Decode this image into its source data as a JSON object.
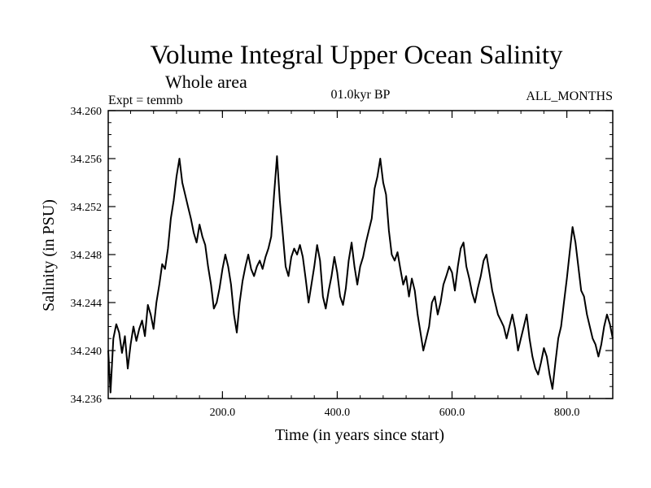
{
  "chart_data": {
    "type": "line",
    "title": "Volume Integral Upper Ocean Salinity",
    "subtitle": "Whole area",
    "experiment_label": "Expt = temmb",
    "period_label": "01.0kyr BP",
    "months_label": "ALL_MONTHS",
    "xlabel": "Time (in years since start)",
    "ylabel": "Salinity (in PSU)",
    "xlim": [
      1,
      880
    ],
    "ylim": [
      34.236,
      34.26
    ],
    "grid": false,
    "x_ticks": [
      200,
      400,
      600,
      800
    ],
    "x_tick_labels": [
      "200.0",
      "400.0",
      "600.0",
      "800.0"
    ],
    "y_ticks": [
      34.236,
      34.24,
      34.244,
      34.248,
      34.252,
      34.256,
      34.26
    ],
    "y_tick_labels": [
      "34.236",
      "34.240",
      "34.244",
      "34.248",
      "34.252",
      "34.256",
      "34.260"
    ],
    "series": [
      {
        "name": "Salinity",
        "color": "#000000",
        "x": [
          1,
          5,
          10,
          15,
          20,
          25,
          30,
          35,
          40,
          45,
          50,
          55,
          60,
          65,
          70,
          75,
          80,
          85,
          90,
          95,
          100,
          105,
          110,
          115,
          120,
          125,
          130,
          135,
          140,
          145,
          150,
          155,
          160,
          165,
          170,
          175,
          180,
          185,
          190,
          195,
          200,
          205,
          210,
          215,
          220,
          225,
          230,
          235,
          240,
          245,
          250,
          255,
          260,
          265,
          270,
          275,
          280,
          285,
          290,
          295,
          300,
          305,
          310,
          315,
          320,
          325,
          330,
          335,
          340,
          345,
          350,
          355,
          360,
          365,
          370,
          375,
          380,
          385,
          390,
          395,
          400,
          405,
          410,
          415,
          420,
          425,
          430,
          435,
          440,
          445,
          450,
          455,
          460,
          465,
          470,
          475,
          480,
          485,
          490,
          495,
          500,
          505,
          510,
          515,
          520,
          525,
          530,
          535,
          540,
          545,
          550,
          555,
          560,
          565,
          570,
          575,
          580,
          585,
          590,
          595,
          600,
          605,
          610,
          615,
          620,
          625,
          630,
          635,
          640,
          645,
          650,
          655,
          660,
          665,
          670,
          675,
          680,
          685,
          690,
          695,
          700,
          705,
          710,
          715,
          720,
          725,
          730,
          735,
          740,
          745,
          750,
          755,
          760,
          765,
          770,
          775,
          780,
          785,
          790,
          795,
          800,
          805,
          810,
          815,
          820,
          825,
          830,
          835,
          840,
          845,
          850,
          855,
          860,
          865,
          870,
          875,
          880
        ],
        "values": [
          34.24,
          34.2365,
          34.241,
          34.2422,
          34.2415,
          34.2398,
          34.2412,
          34.2385,
          34.2405,
          34.242,
          34.2408,
          34.2418,
          34.2425,
          34.2412,
          34.2438,
          34.243,
          34.2418,
          34.244,
          34.2455,
          34.2472,
          34.2468,
          34.2485,
          34.251,
          34.2525,
          34.2545,
          34.256,
          34.254,
          34.253,
          34.252,
          34.251,
          34.2498,
          34.249,
          34.2505,
          34.2495,
          34.2488,
          34.247,
          34.2455,
          34.2435,
          34.244,
          34.2452,
          34.2468,
          34.248,
          34.247,
          34.2455,
          34.243,
          34.2415,
          34.244,
          34.2458,
          34.247,
          34.248,
          34.2468,
          34.2462,
          34.247,
          34.2475,
          34.2468,
          34.2478,
          34.2485,
          34.2495,
          34.253,
          34.2562,
          34.2525,
          34.2498,
          34.247,
          34.2462,
          34.2478,
          34.2485,
          34.248,
          34.2488,
          34.2478,
          34.246,
          34.244,
          34.2455,
          34.247,
          34.2488,
          34.2475,
          34.2445,
          34.2435,
          34.245,
          34.2462,
          34.2478,
          34.2465,
          34.2445,
          34.2438,
          34.2452,
          34.2475,
          34.249,
          34.247,
          34.2455,
          34.247,
          34.2478,
          34.249,
          34.25,
          34.251,
          34.2535,
          34.2545,
          34.256,
          34.254,
          34.253,
          34.25,
          34.248,
          34.2475,
          34.2482,
          34.2468,
          34.2455,
          34.2462,
          34.2445,
          34.246,
          34.245,
          34.243,
          34.2415,
          34.24,
          34.241,
          34.242,
          34.244,
          34.2445,
          34.243,
          34.244,
          34.2455,
          34.2462,
          34.247,
          34.2465,
          34.245,
          34.247,
          34.2485,
          34.249,
          34.247,
          34.246,
          34.2448,
          34.244,
          34.2452,
          34.2462,
          34.2475,
          34.248,
          34.2465,
          34.245,
          34.244,
          34.243,
          34.2425,
          34.242,
          34.241,
          34.242,
          34.243,
          34.2418,
          34.24,
          34.241,
          34.242,
          34.243,
          34.241,
          34.2395,
          34.2385,
          34.238,
          34.239,
          34.2402,
          34.2395,
          34.238,
          34.2368,
          34.239,
          34.241,
          34.242,
          34.244,
          34.246,
          34.2482,
          34.2503,
          34.249,
          34.247,
          34.245,
          34.2445,
          34.243,
          34.242,
          34.241,
          34.2405,
          34.2395,
          34.2405,
          34.242,
          34.243,
          34.2422,
          34.241
        ]
      }
    ]
  }
}
